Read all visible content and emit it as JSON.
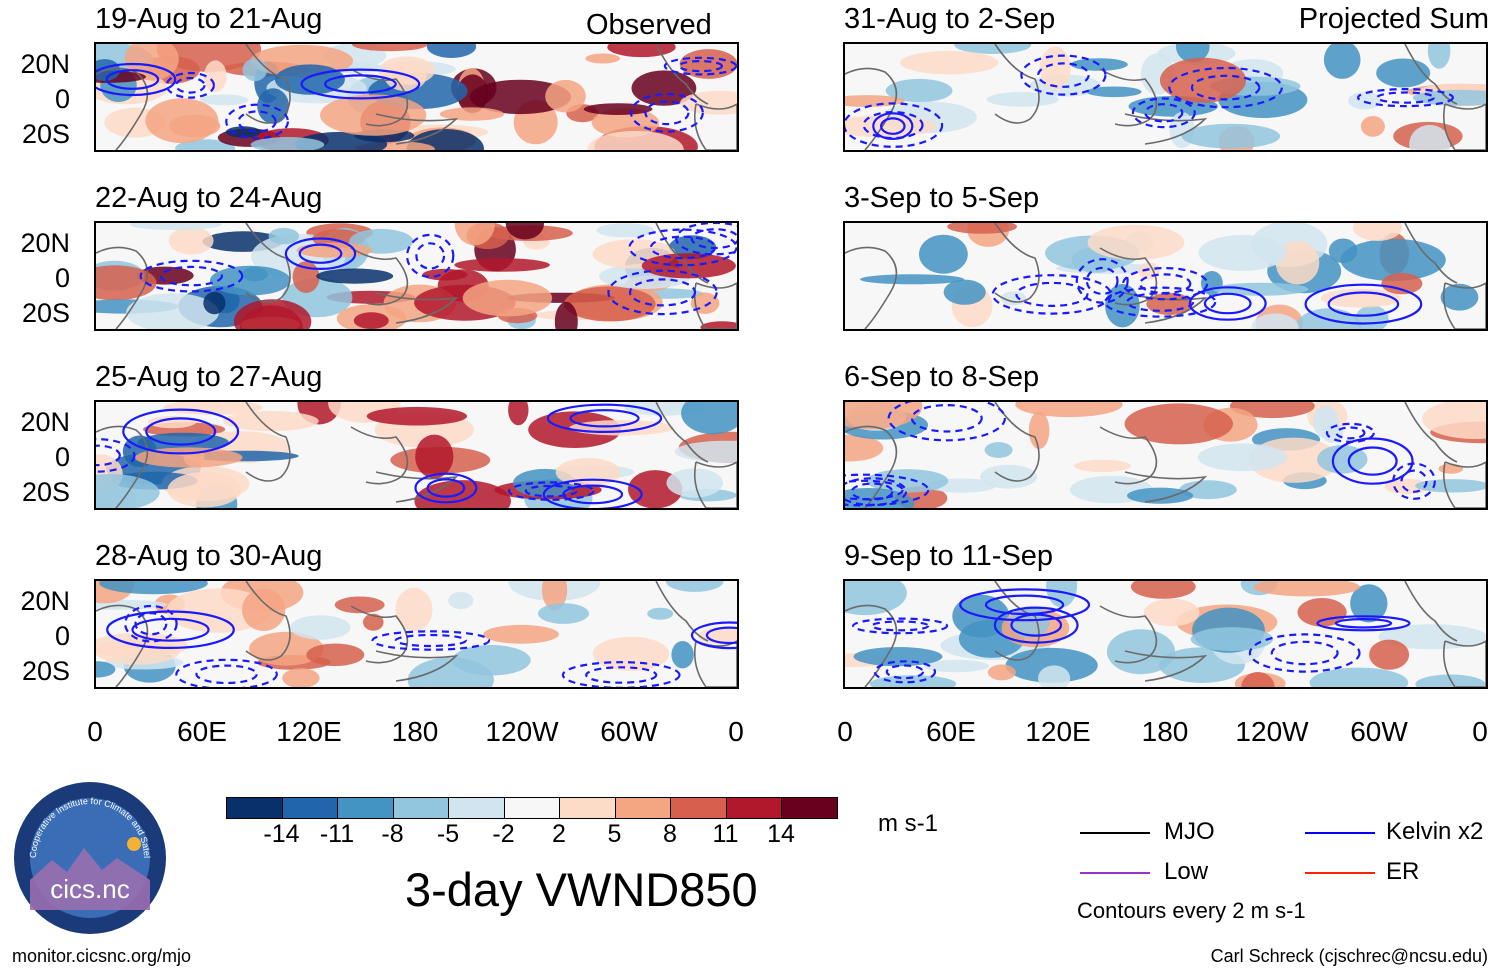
{
  "figure": {
    "title": "3-day VWND850",
    "units": "m s-1",
    "left_column_label": "Observed",
    "right_column_label": "Projected Sum",
    "source_url": "monitor.cicsnc.org/mjo",
    "credit": "Carl Schreck (cjschrec@ncsu.edu)",
    "contour_note": "Contours every 2 m s-1"
  },
  "panels_left": [
    {
      "date": "19-Aug to 21-Aug",
      "anomaly_strength": "strong"
    },
    {
      "date": "22-Aug to 24-Aug",
      "anomaly_strength": "strong"
    },
    {
      "date": "25-Aug to 27-Aug",
      "anomaly_strength": "moderate"
    },
    {
      "date": "28-Aug to 30-Aug",
      "anomaly_strength": "weak"
    }
  ],
  "panels_right": [
    {
      "date": "31-Aug to 2-Sep",
      "anomaly_strength": "weak"
    },
    {
      "date": "3-Sep to 5-Sep",
      "anomaly_strength": "weak"
    },
    {
      "date": "6-Sep to 8-Sep",
      "anomaly_strength": "weak"
    },
    {
      "date": "9-Sep to 11-Sep",
      "anomaly_strength": "weak"
    }
  ],
  "axes": {
    "lat_ticks": [
      "20N",
      "0",
      "20S"
    ],
    "lon_ticks": [
      "0",
      "60E",
      "120E",
      "180",
      "120W",
      "60W",
      "0"
    ]
  },
  "colorbar": {
    "colors": [
      "#08306b",
      "#2166ac",
      "#4393c3",
      "#92c5de",
      "#d1e5f0",
      "#f7f7f7",
      "#fddbc7",
      "#f4a582",
      "#d6604d",
      "#b2182b",
      "#67001f"
    ],
    "ticks": [
      "-14",
      "-11",
      "-8",
      "-5",
      "-2",
      "2",
      "5",
      "8",
      "11",
      "14"
    ]
  },
  "legend": [
    {
      "label": "MJO",
      "color": "#000000"
    },
    {
      "label": "Kelvin x2",
      "color": "#0000ff"
    },
    {
      "label": "Low",
      "color": "#9933cc"
    },
    {
      "label": "ER",
      "color": "#ff2200"
    }
  ],
  "logo": {
    "text": "cics.nc",
    "ring_text": "Cooperative Institute for Climate and Satellites"
  }
}
